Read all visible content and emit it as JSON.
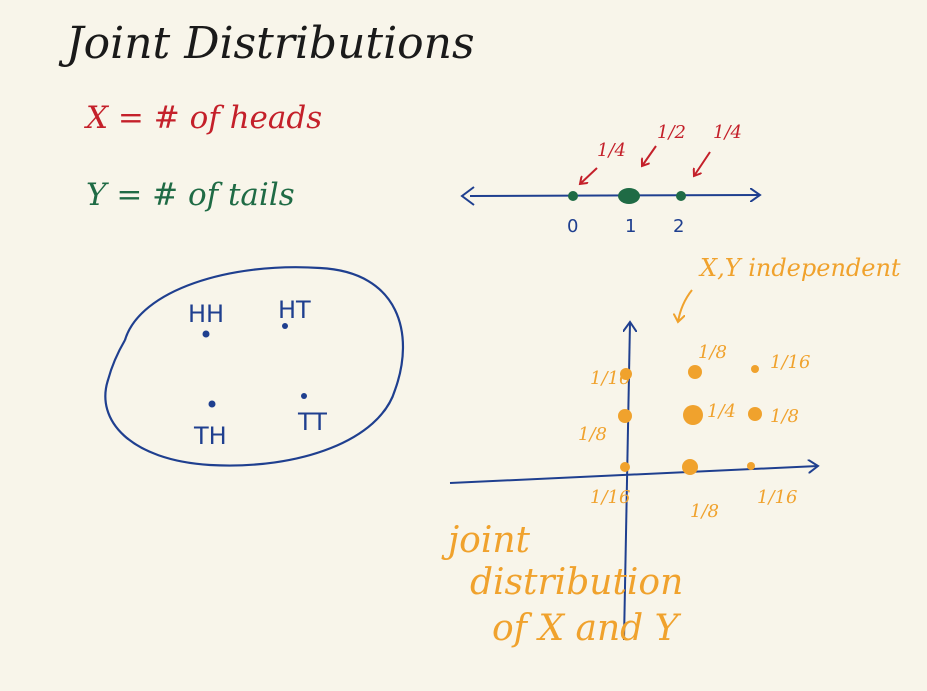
{
  "title": "Joint Distributions",
  "definitions": {
    "x_def": "X = # of heads",
    "y_def": "Y = # of tails"
  },
  "colors": {
    "background": "#f8f5ea",
    "ink_black": "#1a1a1a",
    "ink_red": "#c4202a",
    "ink_green": "#1f6b45",
    "ink_blue": "#1f3f8f",
    "ink_orange": "#f0a22d"
  },
  "sample_space": {
    "outcomes": [
      "HH",
      "HT",
      "TH",
      "TT"
    ]
  },
  "number_line": {
    "ticks": [
      "0",
      "1",
      "2"
    ],
    "probabilities": [
      "1/4",
      "1/2",
      "1/4"
    ]
  },
  "joint_plot": {
    "annotation": "X,Y independent",
    "y_axis_labels": [
      "1/16",
      "1/8"
    ],
    "x_axis_labels": [
      "1/16",
      "1/8",
      "1/16"
    ],
    "point_labels": [
      "1/8",
      "1/16",
      "1/4",
      "1/8"
    ],
    "caption_lines": [
      "joint",
      "distribution",
      "of X and Y"
    ]
  }
}
